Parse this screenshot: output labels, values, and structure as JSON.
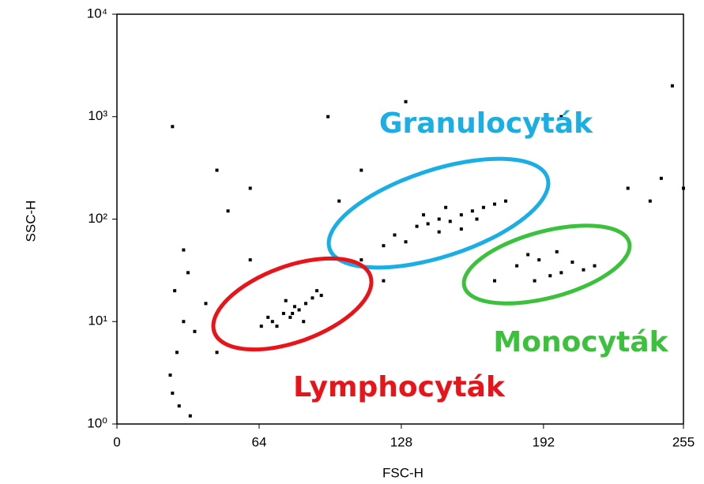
{
  "chart_data": {
    "type": "scatter",
    "xlabel": "FSC-H",
    "ylabel": "SSC-H",
    "xlim": [
      0,
      255
    ],
    "ylim": [
      1,
      10000
    ],
    "yscale": "log",
    "xticks": [
      0,
      64,
      128,
      192,
      255
    ],
    "yticks": [
      {
        "value": 1,
        "label": "10⁰"
      },
      {
        "value": 10,
        "label": "10¹"
      },
      {
        "value": 100,
        "label": "10²"
      },
      {
        "value": 1000,
        "label": "10³"
      },
      {
        "value": 10000,
        "label": "10⁴"
      }
    ],
    "color": "#000000",
    "x": [
      70,
      75,
      80,
      85,
      78,
      72,
      88,
      82,
      68,
      90,
      76,
      84,
      65,
      92,
      79,
      125,
      135,
      145,
      155,
      165,
      140,
      150,
      130,
      160,
      170,
      145,
      138,
      155,
      120,
      175,
      148,
      162,
      180,
      190,
      200,
      195,
      185,
      205,
      210,
      188,
      198,
      215,
      25,
      27,
      30,
      26,
      32,
      28,
      35,
      24,
      30,
      40,
      45,
      33,
      25,
      95,
      130,
      150,
      200,
      45,
      60,
      100,
      110,
      230,
      245,
      250,
      255,
      110,
      60,
      50,
      240,
      170,
      120
    ],
    "y": [
      10,
      12,
      14,
      15,
      11,
      9,
      17,
      13,
      11,
      20,
      16,
      10,
      9,
      18,
      12,
      70,
      85,
      100,
      110,
      130,
      90,
      95,
      60,
      120,
      140,
      75,
      110,
      80,
      55,
      150,
      130,
      100,
      35,
      40,
      30,
      28,
      45,
      38,
      32,
      25,
      48,
      35,
      2,
      5,
      10,
      20,
      30,
      1.5,
      8,
      3,
      50,
      15,
      5,
      1.2,
      800,
      1000,
      1400,
      900,
      1000,
      300,
      200,
      150,
      300,
      200,
      250,
      2000,
      200,
      40,
      40,
      120,
      150,
      25,
      25
    ],
    "annotations": [
      {
        "text": "Granulocyták",
        "color": "#1aaee5"
      },
      {
        "text": "Monocyták",
        "color": "#3cc13c"
      },
      {
        "text": "Lymphocyták",
        "color": "#e8141a"
      }
    ]
  }
}
